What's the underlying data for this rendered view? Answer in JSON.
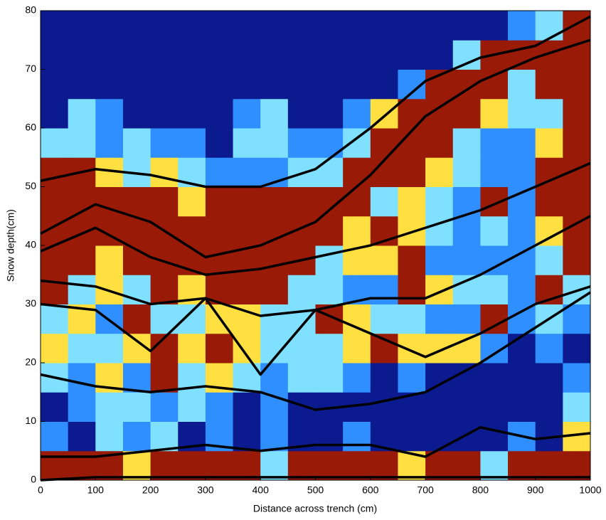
{
  "chart_data": {
    "type": "heatmap",
    "xlabel": "Distance across trench (cm)",
    "ylabel": "Snow depth(cm)",
    "xlim": [
      0,
      1000
    ],
    "ylim": [
      0,
      80
    ],
    "xticks": [
      0,
      100,
      200,
      300,
      400,
      500,
      600,
      700,
      800,
      900,
      1000
    ],
    "yticks": [
      0,
      10,
      20,
      30,
      40,
      50,
      60,
      70,
      80
    ],
    "grid": false,
    "colors": [
      "#0b1b8f",
      "#2f8fff",
      "#80e0ff",
      "#ffe040",
      "#9a1a08"
    ],
    "z": [
      [
        4,
        4,
        4,
        3,
        4,
        4,
        4,
        4,
        2,
        4,
        4,
        4,
        4,
        3,
        4,
        4,
        2,
        4,
        4,
        4
      ],
      [
        1,
        0,
        2,
        1,
        2,
        0,
        1,
        0,
        1,
        0,
        0,
        1,
        0,
        0,
        0,
        0,
        0,
        1,
        0,
        3
      ],
      [
        0,
        1,
        2,
        2,
        1,
        2,
        1,
        0,
        1,
        0,
        0,
        0,
        0,
        0,
        0,
        0,
        0,
        0,
        0,
        2
      ],
      [
        2,
        1,
        3,
        1,
        4,
        2,
        3,
        2,
        1,
        2,
        2,
        1,
        0,
        1,
        0,
        0,
        0,
        0,
        0,
        1
      ],
      [
        3,
        2,
        2,
        3,
        4,
        3,
        4,
        3,
        2,
        2,
        2,
        3,
        4,
        3,
        3,
        3,
        1,
        0,
        1,
        0
      ],
      [
        2,
        3,
        1,
        4,
        2,
        2,
        3,
        3,
        2,
        2,
        4,
        3,
        2,
        2,
        1,
        1,
        4,
        1,
        2,
        1
      ],
      [
        4,
        2,
        3,
        2,
        4,
        3,
        4,
        4,
        4,
        2,
        2,
        1,
        1,
        4,
        3,
        2,
        2,
        1,
        4,
        2
      ],
      [
        4,
        4,
        3,
        4,
        4,
        4,
        4,
        4,
        4,
        4,
        2,
        3,
        3,
        4,
        1,
        1,
        1,
        1,
        2,
        4
      ],
      [
        4,
        4,
        4,
        4,
        4,
        4,
        4,
        4,
        4,
        4,
        4,
        3,
        4,
        3,
        2,
        1,
        2,
        1,
        3,
        4
      ],
      [
        4,
        4,
        4,
        4,
        4,
        3,
        4,
        4,
        4,
        4,
        4,
        4,
        2,
        3,
        2,
        1,
        4,
        1,
        4,
        4
      ],
      [
        4,
        4,
        3,
        2,
        3,
        2,
        1,
        1,
        1,
        2,
        2,
        4,
        4,
        4,
        3,
        2,
        1,
        1,
        4,
        4
      ],
      [
        2,
        2,
        1,
        2,
        1,
        1,
        0,
        2,
        2,
        1,
        1,
        2,
        4,
        4,
        4,
        2,
        1,
        1,
        3,
        4
      ],
      [
        0,
        2,
        1,
        0,
        0,
        0,
        0,
        1,
        2,
        0,
        0,
        1,
        3,
        4,
        4,
        4,
        3,
        2,
        2,
        4
      ],
      [
        0,
        0,
        0,
        0,
        0,
        0,
        0,
        0,
        0,
        0,
        0,
        0,
        0,
        1,
        4,
        4,
        4,
        2,
        4,
        4
      ],
      [
        0,
        0,
        0,
        0,
        0,
        0,
        0,
        0,
        0,
        0,
        0,
        0,
        0,
        0,
        0,
        2,
        4,
        4,
        4,
        4
      ],
      [
        0,
        0,
        0,
        0,
        0,
        0,
        0,
        0,
        0,
        0,
        0,
        0,
        0,
        0,
        0,
        0,
        0,
        1,
        2,
        4
      ]
    ],
    "x": [
      0,
      100,
      200,
      300,
      400,
      500,
      600,
      700,
      800,
      900,
      1000
    ],
    "series": [
      {
        "color": "#000000",
        "values": [
          51,
          53,
          52,
          50,
          50,
          53,
          60,
          68,
          72,
          74,
          79
        ]
      },
      {
        "color": "#000000",
        "values": [
          42,
          47,
          44,
          38,
          40,
          44,
          52,
          62,
          68,
          72,
          75
        ]
      },
      {
        "color": "#000000",
        "values": [
          39,
          43,
          38,
          35,
          36,
          38,
          40,
          43,
          46,
          50,
          54
        ]
      },
      {
        "color": "#000000",
        "values": [
          34,
          33,
          30,
          31,
          28,
          29,
          31,
          31,
          35,
          40,
          45
        ]
      },
      {
        "color": "#000000",
        "values": [
          30,
          29,
          22,
          31,
          18,
          29,
          25,
          21,
          25,
          30,
          33
        ]
      },
      {
        "color": "#000000",
        "values": [
          18,
          16,
          15,
          16,
          15,
          12,
          13,
          15,
          20,
          26,
          32
        ]
      },
      {
        "color": "#000000",
        "values": [
          4,
          4,
          5,
          6,
          5,
          6,
          6,
          4,
          9,
          7,
          8
        ]
      },
      {
        "color": "#000000",
        "values": [
          0,
          0.5,
          0.5,
          0.5,
          0.5,
          0.5,
          0.5,
          0.5,
          0.5,
          0.5,
          0.5
        ]
      }
    ]
  }
}
